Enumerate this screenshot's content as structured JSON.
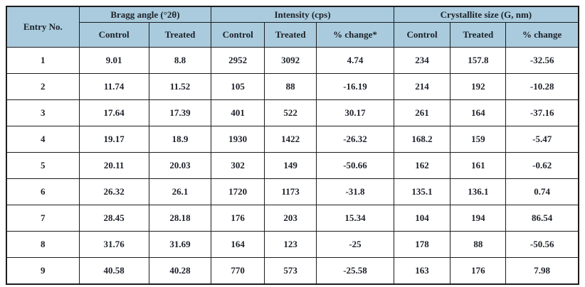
{
  "colors": {
    "header_bg": "#a9cbdd",
    "border": "#1c1c1c",
    "text": "#1d2129",
    "row_bg": "#ffffff"
  },
  "chart_data": {
    "type": "table",
    "entry_header": "Entry No.",
    "groups": [
      {
        "label": "Bragg angle (°2θ)",
        "columns": [
          "Control",
          "Treated"
        ]
      },
      {
        "label": "Intensity (cps)",
        "columns": [
          "Control",
          "Treated",
          "% change*"
        ]
      },
      {
        "label": "Crystallite size (G, nm)",
        "columns": [
          "Control",
          "Treated",
          "% change"
        ]
      }
    ],
    "rows": [
      [
        "1",
        "9.01",
        "8.8",
        "2952",
        "3092",
        "4.74",
        "234",
        "157.8",
        "-32.56"
      ],
      [
        "2",
        "11.74",
        "11.52",
        "105",
        "88",
        "-16.19",
        "214",
        "192",
        "-10.28"
      ],
      [
        "3",
        "17.64",
        "17.39",
        "401",
        "522",
        "30.17",
        "261",
        "164",
        "-37.16"
      ],
      [
        "4",
        "19.17",
        "18.9",
        "1930",
        "1422",
        "-26.32",
        "168.2",
        "159",
        "-5.47"
      ],
      [
        "5",
        "20.11",
        "20.03",
        "302",
        "149",
        "-50.66",
        "162",
        "161",
        "-0.62"
      ],
      [
        "6",
        "26.32",
        "26.1",
        "1720",
        "1173",
        "-31.8",
        "135.1",
        "136.1",
        "0.74"
      ],
      [
        "7",
        "28.45",
        "28.18",
        "176",
        "203",
        "15.34",
        "104",
        "194",
        "86.54"
      ],
      [
        "8",
        "31.76",
        "31.69",
        "164",
        "123",
        "-25",
        "178",
        "88",
        "-50.56"
      ],
      [
        "9",
        "40.58",
        "40.28",
        "770",
        "573",
        "-25.58",
        "163",
        "176",
        "7.98"
      ]
    ]
  }
}
